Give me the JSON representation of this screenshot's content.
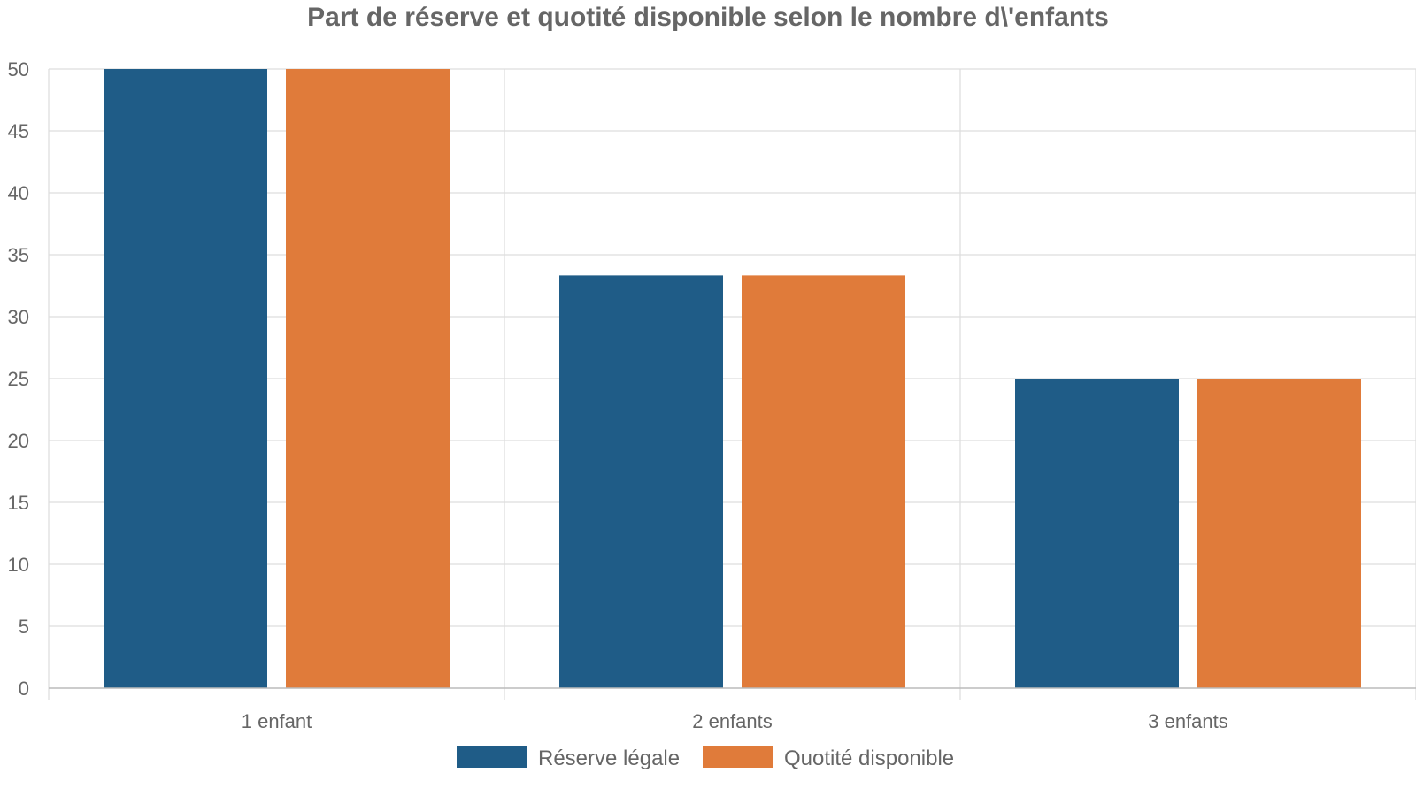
{
  "chart_data": {
    "type": "bar",
    "title": "Part de réserve et quotité disponible selon le nombre d\\'enfants",
    "categories": [
      "1 enfant",
      "2 enfants",
      "3 enfants"
    ],
    "series": [
      {
        "name": "Réserve légale",
        "values": [
          50,
          33.33,
          25
        ],
        "color": "#1f5c87"
      },
      {
        "name": "Quotité disponible",
        "values": [
          50,
          33.33,
          25
        ],
        "color": "#e07b3a"
      }
    ],
    "ylim": [
      0,
      50
    ],
    "yticks": [
      0,
      5,
      10,
      15,
      20,
      25,
      30,
      35,
      40,
      45,
      50
    ],
    "grid": true,
    "legend_position": "bottom"
  },
  "colors": {
    "grid": "#dddddd",
    "axis": "#bbbbbb",
    "text": "#666666"
  }
}
